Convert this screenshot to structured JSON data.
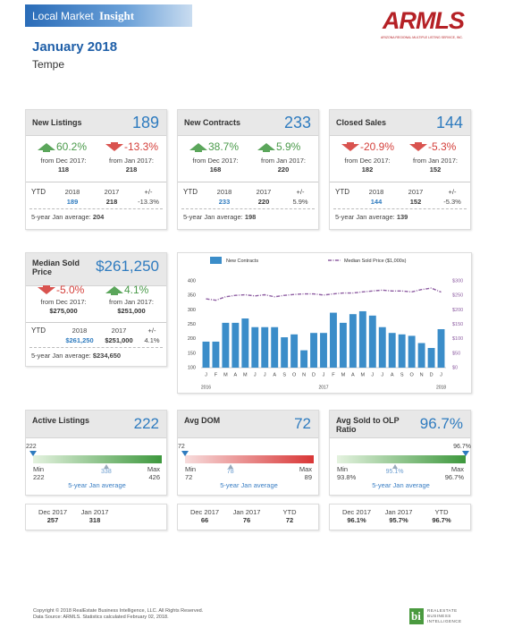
{
  "header": {
    "title_regular": "Local Market",
    "title_bold": "Insight",
    "logo": "ARMLS",
    "logo_subtitle": "ARIZONA REGIONAL MULTIPLE LISTING SERVICE, INC.",
    "period": "January 2018",
    "area": "Tempe"
  },
  "summary_cards": [
    {
      "title": "New Listings",
      "value": "189",
      "changes": [
        {
          "direction": "up",
          "percent": "60.2%",
          "label": "from Dec 2017:",
          "value": "118"
        },
        {
          "direction": "down",
          "percent": "-13.3%",
          "label": "from Jan 2017:",
          "value": "218"
        }
      ],
      "ytd": {
        "label": "YTD",
        "columns": [
          "2018",
          "2017",
          "+/-"
        ],
        "values": [
          "189",
          "218",
          "-13.3%"
        ]
      },
      "average": {
        "label": "5-year Jan average:",
        "value": "204"
      }
    },
    {
      "title": "New Contracts",
      "value": "233",
      "changes": [
        {
          "direction": "up",
          "percent": "38.7%",
          "label": "from Dec 2017:",
          "value": "168"
        },
        {
          "direction": "up",
          "percent": "5.9%",
          "label": "from Jan 2017:",
          "value": "220"
        }
      ],
      "ytd": {
        "label": "YTD",
        "columns": [
          "2018",
          "2017",
          "+/-"
        ],
        "values": [
          "233",
          "220",
          "5.9%"
        ]
      },
      "average": {
        "label": "5-year Jan average:",
        "value": "198"
      }
    },
    {
      "title": "Closed Sales",
      "value": "144",
      "changes": [
        {
          "direction": "down",
          "percent": "-20.9%",
          "label": "from Dec 2017:",
          "value": "182"
        },
        {
          "direction": "down",
          "percent": "-5.3%",
          "label": "from Jan 2017:",
          "value": "152"
        }
      ],
      "ytd": {
        "label": "YTD",
        "columns": [
          "2018",
          "2017",
          "+/-"
        ],
        "values": [
          "144",
          "152",
          "-5.3%"
        ]
      },
      "average": {
        "label": "5-year Jan average:",
        "value": "139"
      }
    }
  ],
  "price_card": {
    "title": "Median Sold Price",
    "value": "$261,250",
    "changes": [
      {
        "direction": "down",
        "percent": "-5.0%",
        "label": "from Dec 2017:",
        "value": "$275,000"
      },
      {
        "direction": "up",
        "percent": "4.1%",
        "label": "from Jan 2017:",
        "value": "$251,000"
      }
    ],
    "ytd": {
      "label": "YTD",
      "columns": [
        "2018",
        "2017",
        "+/-"
      ],
      "values": [
        "$261,250",
        "$251,000",
        "4.1%"
      ]
    },
    "average": {
      "label": "5-year Jan average:",
      "value": "$234,650"
    }
  },
  "gauge_cards": [
    {
      "title": "Active Listings",
      "value": "222",
      "gauge": {
        "current": 222,
        "min_label": "Min",
        "min": 222,
        "average": 338,
        "max_label": "Max",
        "max": 426,
        "caption": "5-year Jan average",
        "colors": [
          "#e4f2df",
          "#3d983d"
        ]
      },
      "history": [
        {
          "label": "Dec 2017",
          "value": "257"
        },
        {
          "label": "Jan 2017",
          "value": "318"
        }
      ]
    },
    {
      "title": "Avg DOM",
      "value": "72",
      "gauge": {
        "current": 72,
        "min_label": "Min",
        "min": 72,
        "average": 78,
        "max_label": "Max",
        "max": 89,
        "caption": "5-year Jan average",
        "colors": [
          "#f7dcdc",
          "#d93636"
        ]
      },
      "history": [
        {
          "label": "Dec 2017",
          "value": "66"
        },
        {
          "label": "Jan 2017",
          "value": "76"
        },
        {
          "label": "YTD",
          "value": "72"
        }
      ]
    },
    {
      "title": "Avg Sold to OLP Ratio",
      "value": "96.7%",
      "gauge": {
        "current": {
          "value": 96.7,
          "label": "96.7%"
        },
        "min_label": "Min",
        "min": {
          "value": 93.8,
          "label": "93.8%"
        },
        "average": {
          "value": 95.1,
          "label": "95.1%"
        },
        "max_label": "Max",
        "max": {
          "value": 96.7,
          "label": "96.7%"
        },
        "caption": "5-year Jan average",
        "colors": [
          "#e4f2df",
          "#3d983d"
        ]
      },
      "history": [
        {
          "label": "Dec 2017",
          "value": "96.1%"
        },
        {
          "label": "Jan 2017",
          "value": "95.7%"
        },
        {
          "label": "YTD",
          "value": "96.7%"
        }
      ]
    }
  ],
  "chart_data": {
    "type": "combo",
    "categories": [
      "J",
      "F",
      "M",
      "A",
      "M",
      "J",
      "J",
      "A",
      "S",
      "O",
      "N",
      "D",
      "J",
      "F",
      "M",
      "A",
      "M",
      "J",
      "J",
      "A",
      "S",
      "O",
      "N",
      "D",
      "J"
    ],
    "year_labels": [
      "2016",
      null,
      null,
      null,
      null,
      null,
      null,
      null,
      null,
      null,
      null,
      null,
      "2017",
      null,
      null,
      null,
      null,
      null,
      null,
      null,
      null,
      null,
      null,
      null,
      "2018"
    ],
    "series": [
      {
        "name": "New Contracts",
        "type": "bar",
        "color": "#3b8dc9",
        "values": [
          190,
          190,
          255,
          255,
          270,
          240,
          240,
          240,
          205,
          215,
          160,
          220,
          220,
          290,
          255,
          285,
          295,
          280,
          240,
          220,
          215,
          210,
          185,
          168,
          233
        ]
      },
      {
        "name": "Median Sold Price ($1,000s)",
        "type": "line",
        "axis": "y2",
        "color": "#8e5ea2",
        "values": [
          238,
          233,
          245,
          250,
          252,
          248,
          252,
          245,
          250,
          253,
          255,
          255,
          251,
          255,
          258,
          258,
          262,
          265,
          268,
          265,
          265,
          262,
          270,
          275,
          261.25
        ]
      }
    ],
    "ylim": [
      100,
      400
    ],
    "yticks": [
      100,
      150,
      200,
      250,
      300,
      350,
      400
    ],
    "y2lim": [
      0,
      300
    ],
    "y2ticks": [
      {
        "value": 0,
        "label": "$0"
      },
      {
        "value": 50,
        "label": "$50"
      },
      {
        "value": 100,
        "label": "$100"
      },
      {
        "value": 150,
        "label": "$150"
      },
      {
        "value": 200,
        "label": "$200"
      },
      {
        "value": 250,
        "label": "$250"
      },
      {
        "value": 300,
        "label": "$300"
      }
    ],
    "grid": false
  },
  "footer": {
    "copyright": "Copyright © 2018 RealEstate Business Intelligence, LLC. All Rights Reserved.",
    "source": "Data Source: ARMLS. Statistics calculated February 02, 2018.",
    "logo_mark": "bi",
    "logo_text": [
      "REALESTATE",
      "BUSINESS",
      "INTELLIGENCE"
    ]
  }
}
